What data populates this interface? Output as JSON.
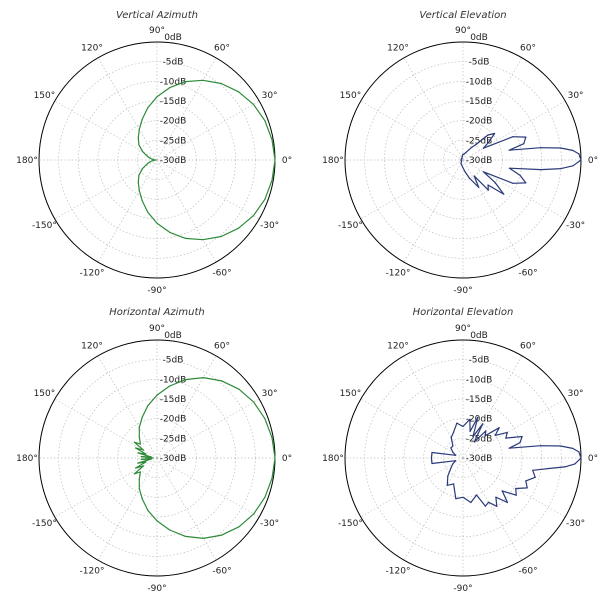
{
  "chart_data": [
    {
      "type": "polar",
      "title": "Vertical Azimuth",
      "unit": "dB",
      "rlim": [
        -30,
        0
      ],
      "db_ticks": [
        "0dB",
        "-5dB",
        "-10dB",
        "-15dB",
        "-20dB",
        "-25dB",
        "-30dB"
      ],
      "angle_ticks": [
        "0°",
        "30°",
        "60°",
        "90°",
        "120°",
        "150°",
        "180°",
        "-150°",
        "-120°",
        "-90°",
        "-60°",
        "-30°"
      ],
      "color": "#2e8b3a",
      "series": [
        {
          "theta": [
            0,
            10,
            20,
            30,
            40,
            50,
            60,
            70,
            80,
            90,
            100,
            110,
            120,
            130,
            140,
            150,
            160,
            165,
            170,
            175,
            180,
            185,
            190,
            195,
            200,
            210,
            220,
            230,
            240,
            250,
            260,
            270,
            280,
            290,
            300,
            310,
            320,
            330,
            340,
            350
          ],
          "r": [
            0,
            -0.3,
            -0.8,
            -1.7,
            -3.0,
            -4.6,
            -6.6,
            -8.8,
            -11.3,
            -13.9,
            -16.5,
            -19.0,
            -21.0,
            -22.6,
            -24.0,
            -25.8,
            -27.5,
            -28.2,
            -28.7,
            -29.3,
            -29.6,
            -29.3,
            -28.7,
            -28.2,
            -27.5,
            -25.8,
            -24.0,
            -22.6,
            -21.0,
            -19.0,
            -16.5,
            -13.9,
            -11.3,
            -8.8,
            -6.6,
            -4.6,
            -3.0,
            -1.7,
            -0.8,
            -0.3
          ]
        }
      ]
    },
    {
      "type": "polar",
      "title": "Vertical Elevation",
      "unit": "dB",
      "rlim": [
        -30,
        0
      ],
      "db_ticks": [
        "0dB",
        "-5dB",
        "-10dB",
        "-15dB",
        "-20dB",
        "-25dB",
        "-30dB"
      ],
      "angle_ticks": [
        "0°",
        "30°",
        "60°",
        "90°",
        "120°",
        "150°",
        "180°",
        "-150°",
        "-120°",
        "-90°",
        "-60°",
        "-30°"
      ],
      "color": "#2b3a7a",
      "series": [
        {
          "theta": [
            0,
            3,
            5,
            7,
            9,
            12,
            15,
            20,
            25,
            30,
            35,
            40,
            45,
            50,
            55,
            60,
            70,
            80,
            90,
            100,
            120,
            140,
            160,
            180,
            200,
            220,
            240,
            260,
            270,
            280,
            290,
            300,
            305,
            310,
            315,
            320,
            325,
            330,
            335,
            340,
            345,
            350,
            353,
            355,
            357
          ],
          "r": [
            0,
            -0.5,
            -2.0,
            -5.0,
            -10.0,
            -18.0,
            -14.0,
            -13.0,
            -16.0,
            -24.0,
            -22.0,
            -19.5,
            -21.0,
            -25.0,
            -26.0,
            -27.0,
            -28.0,
            -28.5,
            -28.5,
            -29.0,
            -29.5,
            -29.5,
            -29.5,
            -29.5,
            -29.5,
            -29.5,
            -29.0,
            -28.5,
            -28.0,
            -27.0,
            -25.0,
            -22.0,
            -25.0,
            -20.0,
            -21.0,
            -16.5,
            -20.0,
            -24.0,
            -16.0,
            -13.0,
            -15.0,
            -18.0,
            -10.0,
            -5.0,
            -2.0
          ]
        }
      ]
    },
    {
      "type": "polar",
      "title": "Horizontal Azimuth",
      "unit": "dB",
      "rlim": [
        -30,
        0
      ],
      "db_ticks": [
        "0dB",
        "-5dB",
        "-10dB",
        "-15dB",
        "-20dB",
        "-25dB",
        "-30dB"
      ],
      "angle_ticks": [
        "0°",
        "30°",
        "60°",
        "90°",
        "120°",
        "150°",
        "180°",
        "-150°",
        "-120°",
        "-90°",
        "-60°",
        "-30°"
      ],
      "color": "#2e8b3a",
      "series": [
        {
          "theta": [
            0,
            10,
            20,
            30,
            40,
            50,
            60,
            70,
            80,
            90,
            100,
            110,
            120,
            130,
            140,
            145,
            150,
            155,
            160,
            165,
            170,
            175,
            180,
            185,
            190,
            195,
            200,
            205,
            210,
            215,
            220,
            230,
            240,
            250,
            260,
            270,
            280,
            290,
            300,
            310,
            320,
            330,
            340,
            350
          ],
          "r": [
            0,
            -0.3,
            -0.8,
            -1.6,
            -2.8,
            -4.4,
            -6.4,
            -8.8,
            -11.4,
            -14.0,
            -16.5,
            -19.0,
            -21.0,
            -23.0,
            -24.5,
            -23.0,
            -26.0,
            -24.0,
            -27.0,
            -25.0,
            -28.5,
            -26.0,
            -29.0,
            -26.0,
            -28.5,
            -25.0,
            -27.0,
            -24.0,
            -26.0,
            -23.0,
            -24.5,
            -23.0,
            -21.0,
            -19.0,
            -16.5,
            -14.0,
            -11.4,
            -8.8,
            -6.4,
            -4.4,
            -2.8,
            -1.6,
            -0.8,
            -0.3
          ]
        }
      ]
    },
    {
      "type": "polar",
      "title": "Horizontal Elevation",
      "unit": "dB",
      "rlim": [
        -30,
        0
      ],
      "db_ticks": [
        "0dB",
        "-5dB",
        "-10dB",
        "-15dB",
        "-20dB",
        "-25dB",
        "-30dB"
      ],
      "angle_ticks": [
        "0°",
        "30°",
        "60°",
        "90°",
        "120°",
        "150°",
        "180°",
        "-150°",
        "-120°",
        "-90°",
        "-60°",
        "-30°"
      ],
      "color": "#2b3a7a",
      "series": [
        {
          "theta": [
            0,
            3,
            5,
            7,
            9,
            12,
            15,
            20,
            25,
            30,
            35,
            40,
            45,
            50,
            55,
            60,
            65,
            70,
            75,
            80,
            90,
            100,
            110,
            120,
            130,
            140,
            150,
            160,
            170,
            175,
            180,
            185,
            190,
            200,
            210,
            220,
            230,
            240,
            250,
            260,
            270,
            280,
            290,
            295,
            300,
            305,
            310,
            315,
            320,
            325,
            330,
            335,
            340,
            345,
            350,
            353,
            355,
            357
          ],
          "r": [
            0,
            -0.5,
            -2.0,
            -5.0,
            -10.0,
            -18.0,
            -15.0,
            -14.0,
            -18.0,
            -17.0,
            -20.0,
            -18.0,
            -22.0,
            -21.0,
            -25.0,
            -20.0,
            -24.0,
            -19.0,
            -23.0,
            -20.0,
            -22.0,
            -21.0,
            -23.0,
            -24.0,
            -26.0,
            -26.0,
            -27.0,
            -28.0,
            -22.0,
            -22.0,
            -22.0,
            -22.0,
            -22.0,
            -28.0,
            -27.0,
            -26.0,
            -24.0,
            -22.0,
            -23.0,
            -19.5,
            -20.0,
            -18.5,
            -20.0,
            -16.5,
            -17.0,
            -15.0,
            -17.0,
            -14.0,
            -17.0,
            -13.5,
            -14.5,
            -12.0,
            -13.0,
            -11.0,
            -12.0,
            -8.0,
            -4.0,
            -1.5
          ]
        }
      ]
    }
  ]
}
